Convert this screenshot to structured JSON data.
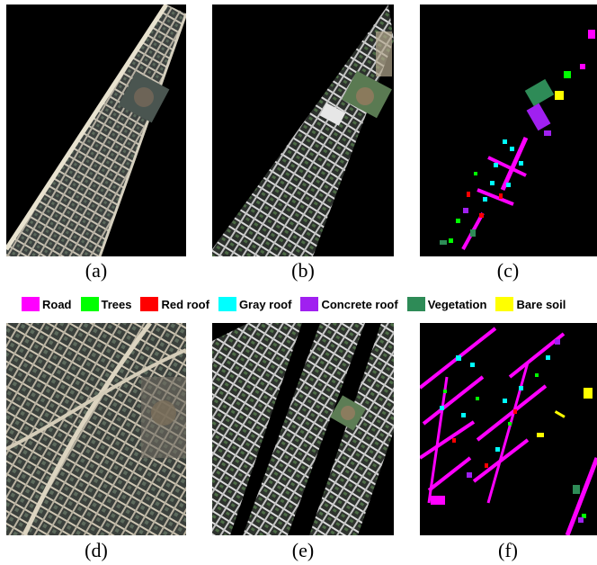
{
  "captions": {
    "a": "(a)",
    "b": "(b)",
    "c": "(c)",
    "d": "(d)",
    "e": "(e)",
    "f": "(f)"
  },
  "legend": {
    "items": [
      {
        "label": "Road",
        "color": "#ff00ff"
      },
      {
        "label": "Trees",
        "color": "#00ff00"
      },
      {
        "label": "Red roof",
        "color": "#ff0000"
      },
      {
        "label": "Gray roof",
        "color": "#00ffff"
      },
      {
        "label": "Concrete roof",
        "color": "#a020f0"
      },
      {
        "label": "Vegetation",
        "color": "#2e8b57"
      },
      {
        "label": "Bare soil",
        "color": "#ffff00"
      }
    ]
  },
  "colors": {
    "background": "#000000",
    "imagery_road": "#cfc8b8",
    "imagery_block": "#3a3f3a",
    "imagery_block_alt": "#555a52",
    "imagery_field": "#2f6b3a"
  }
}
